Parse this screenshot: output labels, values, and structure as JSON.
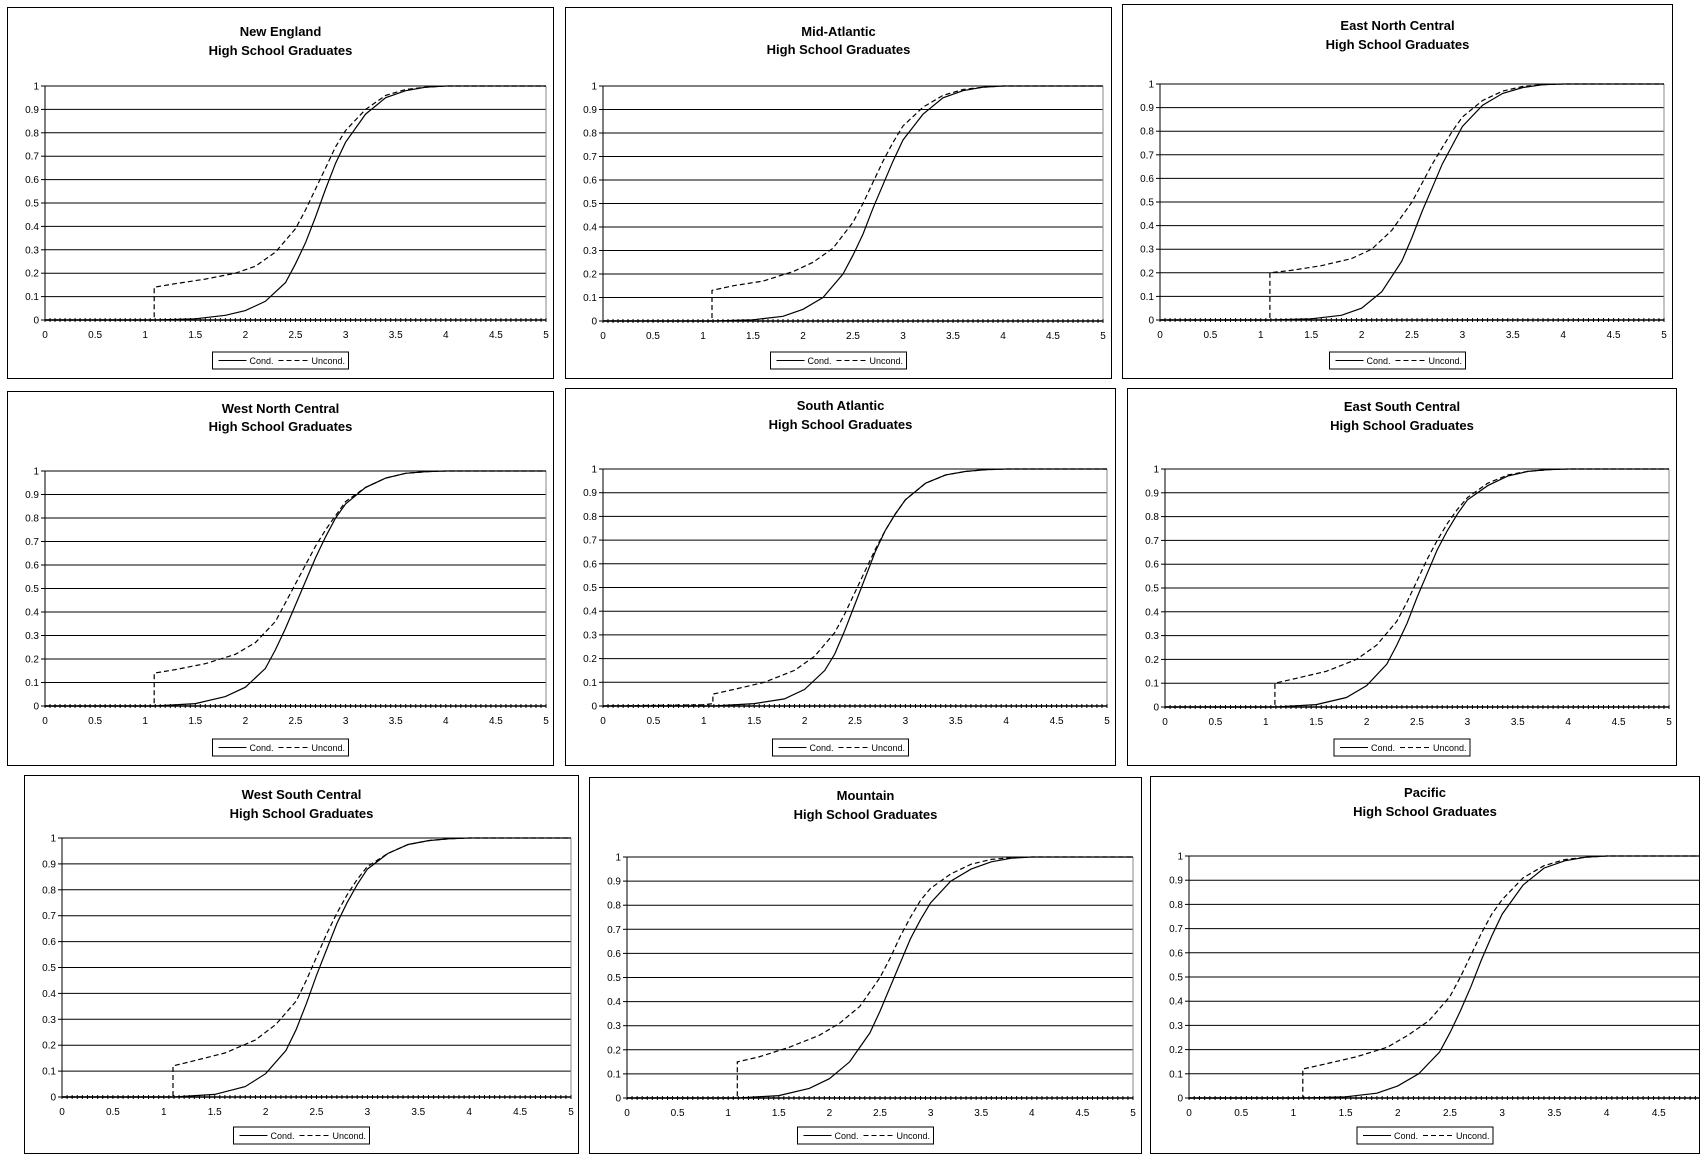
{
  "common": {
    "subtitle": "High School Graduates",
    "legend": [
      "Cond.",
      "Uncond."
    ],
    "x_ticks": [
      "0",
      "0.5",
      "1",
      "1.5",
      "2",
      "2.5",
      "3",
      "3.5",
      "4",
      "4.5",
      "5"
    ],
    "y_ticks": [
      "0",
      "0.1",
      "0.2",
      "0.3",
      "0.4",
      "0.5",
      "0.6",
      "0.7",
      "0.8",
      "0.9",
      "1"
    ]
  },
  "chart_data": [
    {
      "type": "line",
      "title": "New England",
      "subtitle": "High School Graduates",
      "xlim": [
        0,
        5
      ],
      "ylim": [
        0,
        1
      ],
      "grid": true,
      "legend_position": "bottom",
      "series": [
        {
          "name": "Cond.",
          "style": "solid",
          "x": [
            0,
            1.1,
            1.5,
            1.8,
            2.0,
            2.2,
            2.4,
            2.5,
            2.6,
            2.7,
            2.8,
            2.9,
            3.0,
            3.2,
            3.4,
            3.6,
            3.8,
            4.0,
            5.0
          ],
          "y": [
            0,
            0,
            0.005,
            0.02,
            0.04,
            0.08,
            0.16,
            0.24,
            0.33,
            0.44,
            0.56,
            0.67,
            0.76,
            0.88,
            0.95,
            0.98,
            0.995,
            1,
            1
          ]
        },
        {
          "name": "Uncond.",
          "style": "dashed",
          "x": [
            0,
            1.09,
            1.09,
            1.3,
            1.6,
            1.9,
            2.1,
            2.3,
            2.5,
            2.6,
            2.7,
            2.8,
            2.9,
            3.0,
            3.2,
            3.4,
            3.6,
            3.8,
            4.0,
            5.0
          ],
          "y": [
            0,
            0,
            0.14,
            0.155,
            0.175,
            0.2,
            0.23,
            0.29,
            0.39,
            0.47,
            0.56,
            0.65,
            0.74,
            0.81,
            0.9,
            0.96,
            0.985,
            0.995,
            1,
            1
          ]
        }
      ]
    },
    {
      "type": "line",
      "title": "Mid-Atlantic",
      "subtitle": "High School Graduates",
      "xlim": [
        0,
        5
      ],
      "ylim": [
        0,
        1
      ],
      "grid": true,
      "legend_position": "bottom",
      "series": [
        {
          "name": "Cond.",
          "style": "solid",
          "x": [
            0,
            1.1,
            1.5,
            1.8,
            2.0,
            2.2,
            2.4,
            2.5,
            2.6,
            2.7,
            2.8,
            2.9,
            3.0,
            3.2,
            3.4,
            3.6,
            3.8,
            4.0,
            5.0
          ],
          "y": [
            0,
            0,
            0.005,
            0.02,
            0.05,
            0.1,
            0.2,
            0.28,
            0.37,
            0.48,
            0.58,
            0.68,
            0.77,
            0.88,
            0.95,
            0.98,
            0.995,
            1,
            1
          ]
        },
        {
          "name": "Uncond.",
          "style": "dashed",
          "x": [
            0,
            1.09,
            1.09,
            1.3,
            1.6,
            1.9,
            2.1,
            2.3,
            2.5,
            2.6,
            2.7,
            2.8,
            2.9,
            3.0,
            3.2,
            3.4,
            3.6,
            3.8,
            4.0,
            5.0
          ],
          "y": [
            0,
            0,
            0.13,
            0.15,
            0.17,
            0.21,
            0.25,
            0.31,
            0.42,
            0.5,
            0.59,
            0.68,
            0.76,
            0.83,
            0.91,
            0.96,
            0.985,
            0.995,
            1,
            1
          ]
        }
      ]
    },
    {
      "type": "line",
      "title": "East North Central",
      "subtitle": "High School Graduates",
      "xlim": [
        0,
        5
      ],
      "ylim": [
        0,
        1
      ],
      "grid": true,
      "legend_position": "bottom",
      "series": [
        {
          "name": "Cond.",
          "style": "solid",
          "x": [
            0,
            1.1,
            1.5,
            1.8,
            2.0,
            2.2,
            2.4,
            2.5,
            2.6,
            2.7,
            2.8,
            2.9,
            3.0,
            3.2,
            3.4,
            3.6,
            3.8,
            4.0,
            5.0
          ],
          "y": [
            0,
            0,
            0.005,
            0.02,
            0.05,
            0.12,
            0.25,
            0.35,
            0.46,
            0.56,
            0.66,
            0.74,
            0.82,
            0.91,
            0.96,
            0.985,
            0.997,
            1,
            1
          ]
        },
        {
          "name": "Uncond.",
          "style": "dashed",
          "x": [
            0,
            1.09,
            1.09,
            1.3,
            1.6,
            1.9,
            2.1,
            2.3,
            2.5,
            2.6,
            2.7,
            2.8,
            2.9,
            3.0,
            3.2,
            3.4,
            3.6,
            3.8,
            4.0,
            5.0
          ],
          "y": [
            0,
            0,
            0.2,
            0.21,
            0.23,
            0.26,
            0.3,
            0.38,
            0.5,
            0.58,
            0.66,
            0.73,
            0.8,
            0.86,
            0.93,
            0.97,
            0.99,
            0.997,
            1,
            1
          ]
        }
      ]
    },
    {
      "type": "line",
      "title": "West North Central",
      "subtitle": "High School Graduates",
      "xlim": [
        0,
        5
      ],
      "ylim": [
        0,
        1
      ],
      "grid": true,
      "legend_position": "bottom",
      "series": [
        {
          "name": "Cond.",
          "style": "solid",
          "x": [
            0,
            1.1,
            1.5,
            1.8,
            2.0,
            2.2,
            2.3,
            2.4,
            2.5,
            2.6,
            2.7,
            2.8,
            2.9,
            3.0,
            3.2,
            3.4,
            3.6,
            3.8,
            4.0,
            5.0
          ],
          "y": [
            0,
            0,
            0.01,
            0.04,
            0.08,
            0.16,
            0.24,
            0.33,
            0.43,
            0.53,
            0.63,
            0.72,
            0.8,
            0.86,
            0.93,
            0.97,
            0.99,
            0.997,
            1,
            1
          ]
        },
        {
          "name": "Uncond.",
          "style": "dashed",
          "x": [
            0,
            1.09,
            1.09,
            1.3,
            1.6,
            1.9,
            2.1,
            2.3,
            2.4,
            2.5,
            2.6,
            2.7,
            2.8,
            2.9,
            3.0,
            3.2,
            3.4,
            3.6,
            3.8,
            4.0,
            5.0
          ],
          "y": [
            0,
            0,
            0.14,
            0.155,
            0.18,
            0.22,
            0.27,
            0.36,
            0.44,
            0.52,
            0.6,
            0.68,
            0.75,
            0.81,
            0.87,
            0.93,
            0.97,
            0.99,
            0.997,
            1,
            1
          ]
        }
      ]
    },
    {
      "type": "line",
      "title": "South Atlantic",
      "subtitle": "High School Graduates",
      "xlim": [
        0,
        5
      ],
      "ylim": [
        0,
        1
      ],
      "grid": true,
      "legend_position": "bottom",
      "series": [
        {
          "name": "Cond.",
          "style": "solid",
          "x": [
            0,
            1.1,
            1.5,
            1.8,
            2.0,
            2.2,
            2.3,
            2.4,
            2.5,
            2.6,
            2.7,
            2.8,
            2.9,
            3.0,
            3.2,
            3.4,
            3.6,
            3.8,
            4.0,
            5.0
          ],
          "y": [
            0,
            0,
            0.01,
            0.03,
            0.07,
            0.15,
            0.22,
            0.32,
            0.43,
            0.54,
            0.65,
            0.74,
            0.81,
            0.87,
            0.94,
            0.975,
            0.99,
            0.997,
            1,
            1
          ]
        },
        {
          "name": "Uncond.",
          "style": "dashed",
          "x": [
            0,
            1.0,
            1.09,
            1.09,
            1.3,
            1.6,
            1.9,
            2.1,
            2.3,
            2.4,
            2.5,
            2.6,
            2.7,
            2.8,
            2.9,
            3.0,
            3.2,
            3.4,
            3.6,
            3.8,
            4.0,
            5.0
          ],
          "y": [
            0,
            0.005,
            0.01,
            0.05,
            0.07,
            0.1,
            0.15,
            0.21,
            0.31,
            0.39,
            0.48,
            0.57,
            0.66,
            0.74,
            0.81,
            0.87,
            0.94,
            0.975,
            0.99,
            0.997,
            1,
            1
          ]
        }
      ]
    },
    {
      "type": "line",
      "title": "East South Central",
      "subtitle": "High School Graduates",
      "xlim": [
        0,
        5
      ],
      "ylim": [
        0,
        1
      ],
      "grid": true,
      "legend_position": "bottom",
      "series": [
        {
          "name": "Cond.",
          "style": "solid",
          "x": [
            0,
            1.1,
            1.5,
            1.8,
            2.0,
            2.2,
            2.3,
            2.4,
            2.5,
            2.6,
            2.7,
            2.8,
            2.9,
            3.0,
            3.2,
            3.4,
            3.6,
            3.8,
            4.0,
            5.0
          ],
          "y": [
            0,
            0,
            0.01,
            0.04,
            0.09,
            0.18,
            0.26,
            0.35,
            0.46,
            0.56,
            0.66,
            0.74,
            0.81,
            0.87,
            0.93,
            0.97,
            0.99,
            0.997,
            1,
            1
          ]
        },
        {
          "name": "Uncond.",
          "style": "dashed",
          "x": [
            0,
            1.09,
            1.09,
            1.3,
            1.6,
            1.9,
            2.1,
            2.3,
            2.4,
            2.5,
            2.6,
            2.7,
            2.8,
            2.9,
            3.0,
            3.2,
            3.4,
            3.6,
            3.8,
            4.0,
            5.0
          ],
          "y": [
            0,
            0,
            0.1,
            0.12,
            0.15,
            0.2,
            0.26,
            0.36,
            0.44,
            0.53,
            0.62,
            0.7,
            0.77,
            0.83,
            0.88,
            0.94,
            0.975,
            0.99,
            0.997,
            1,
            1
          ]
        }
      ]
    },
    {
      "type": "line",
      "title": "West South Central",
      "subtitle": "High School Graduates",
      "xlim": [
        0,
        5
      ],
      "ylim": [
        0,
        1
      ],
      "grid": true,
      "legend_position": "bottom",
      "series": [
        {
          "name": "Cond.",
          "style": "solid",
          "x": [
            0,
            1.1,
            1.5,
            1.8,
            2.0,
            2.2,
            2.3,
            2.4,
            2.5,
            2.6,
            2.7,
            2.8,
            2.9,
            3.0,
            3.2,
            3.4,
            3.6,
            3.8,
            4.0,
            5.0
          ],
          "y": [
            0,
            0,
            0.01,
            0.04,
            0.09,
            0.18,
            0.26,
            0.36,
            0.47,
            0.57,
            0.67,
            0.75,
            0.82,
            0.88,
            0.94,
            0.975,
            0.99,
            0.997,
            1,
            1
          ]
        },
        {
          "name": "Uncond.",
          "style": "dashed",
          "x": [
            0,
            1.09,
            1.09,
            1.3,
            1.6,
            1.9,
            2.1,
            2.3,
            2.4,
            2.5,
            2.6,
            2.7,
            2.8,
            2.9,
            3.0,
            3.2,
            3.4,
            3.6,
            3.8,
            4.0,
            5.0
          ],
          "y": [
            0,
            0,
            0.12,
            0.14,
            0.17,
            0.22,
            0.28,
            0.37,
            0.45,
            0.54,
            0.63,
            0.71,
            0.78,
            0.84,
            0.89,
            0.94,
            0.975,
            0.99,
            0.997,
            1,
            1
          ]
        }
      ]
    },
    {
      "type": "line",
      "title": "Mountain",
      "subtitle": "High School Graduates",
      "xlim": [
        0,
        5
      ],
      "ylim": [
        0,
        1
      ],
      "grid": true,
      "legend_position": "bottom",
      "series": [
        {
          "name": "Cond.",
          "style": "solid",
          "x": [
            0,
            1.1,
            1.5,
            1.8,
            2.0,
            2.2,
            2.4,
            2.5,
            2.6,
            2.7,
            2.8,
            2.9,
            3.0,
            3.2,
            3.4,
            3.6,
            3.8,
            4.0,
            5.0
          ],
          "y": [
            0,
            0,
            0.01,
            0.04,
            0.08,
            0.15,
            0.27,
            0.36,
            0.46,
            0.56,
            0.66,
            0.74,
            0.81,
            0.9,
            0.95,
            0.98,
            0.995,
            1,
            1
          ]
        },
        {
          "name": "Uncond.",
          "style": "dashed",
          "x": [
            0,
            1.09,
            1.09,
            1.3,
            1.6,
            1.9,
            2.1,
            2.3,
            2.5,
            2.6,
            2.7,
            2.8,
            2.9,
            3.0,
            3.2,
            3.4,
            3.6,
            3.8,
            4.0,
            5.0
          ],
          "y": [
            0,
            0,
            0.15,
            0.17,
            0.21,
            0.26,
            0.31,
            0.38,
            0.5,
            0.58,
            0.67,
            0.75,
            0.82,
            0.87,
            0.93,
            0.97,
            0.99,
            0.997,
            1,
            1
          ]
        }
      ]
    },
    {
      "type": "line",
      "title": "Pacific",
      "subtitle": "High School Graduates",
      "xlim": [
        0,
        5
      ],
      "ylim": [
        0,
        1
      ],
      "grid": true,
      "legend_position": "bottom",
      "series": [
        {
          "name": "Cond.",
          "style": "solid",
          "x": [
            0,
            1.1,
            1.5,
            1.8,
            2.0,
            2.2,
            2.4,
            2.5,
            2.6,
            2.7,
            2.8,
            2.9,
            3.0,
            3.2,
            3.4,
            3.6,
            3.8,
            4.0,
            5.0
          ],
          "y": [
            0,
            0,
            0.005,
            0.02,
            0.05,
            0.1,
            0.19,
            0.27,
            0.36,
            0.46,
            0.57,
            0.67,
            0.76,
            0.88,
            0.95,
            0.98,
            0.995,
            1,
            1
          ]
        },
        {
          "name": "Uncond.",
          "style": "dashed",
          "x": [
            0,
            1.09,
            1.09,
            1.3,
            1.6,
            1.9,
            2.1,
            2.3,
            2.5,
            2.6,
            2.7,
            2.8,
            2.9,
            3.0,
            3.2,
            3.4,
            3.6,
            3.8,
            4.0,
            5.0
          ],
          "y": [
            0,
            0,
            0.12,
            0.14,
            0.17,
            0.21,
            0.26,
            0.32,
            0.42,
            0.5,
            0.59,
            0.68,
            0.76,
            0.82,
            0.91,
            0.96,
            0.985,
            0.995,
            1,
            1
          ]
        }
      ]
    }
  ]
}
